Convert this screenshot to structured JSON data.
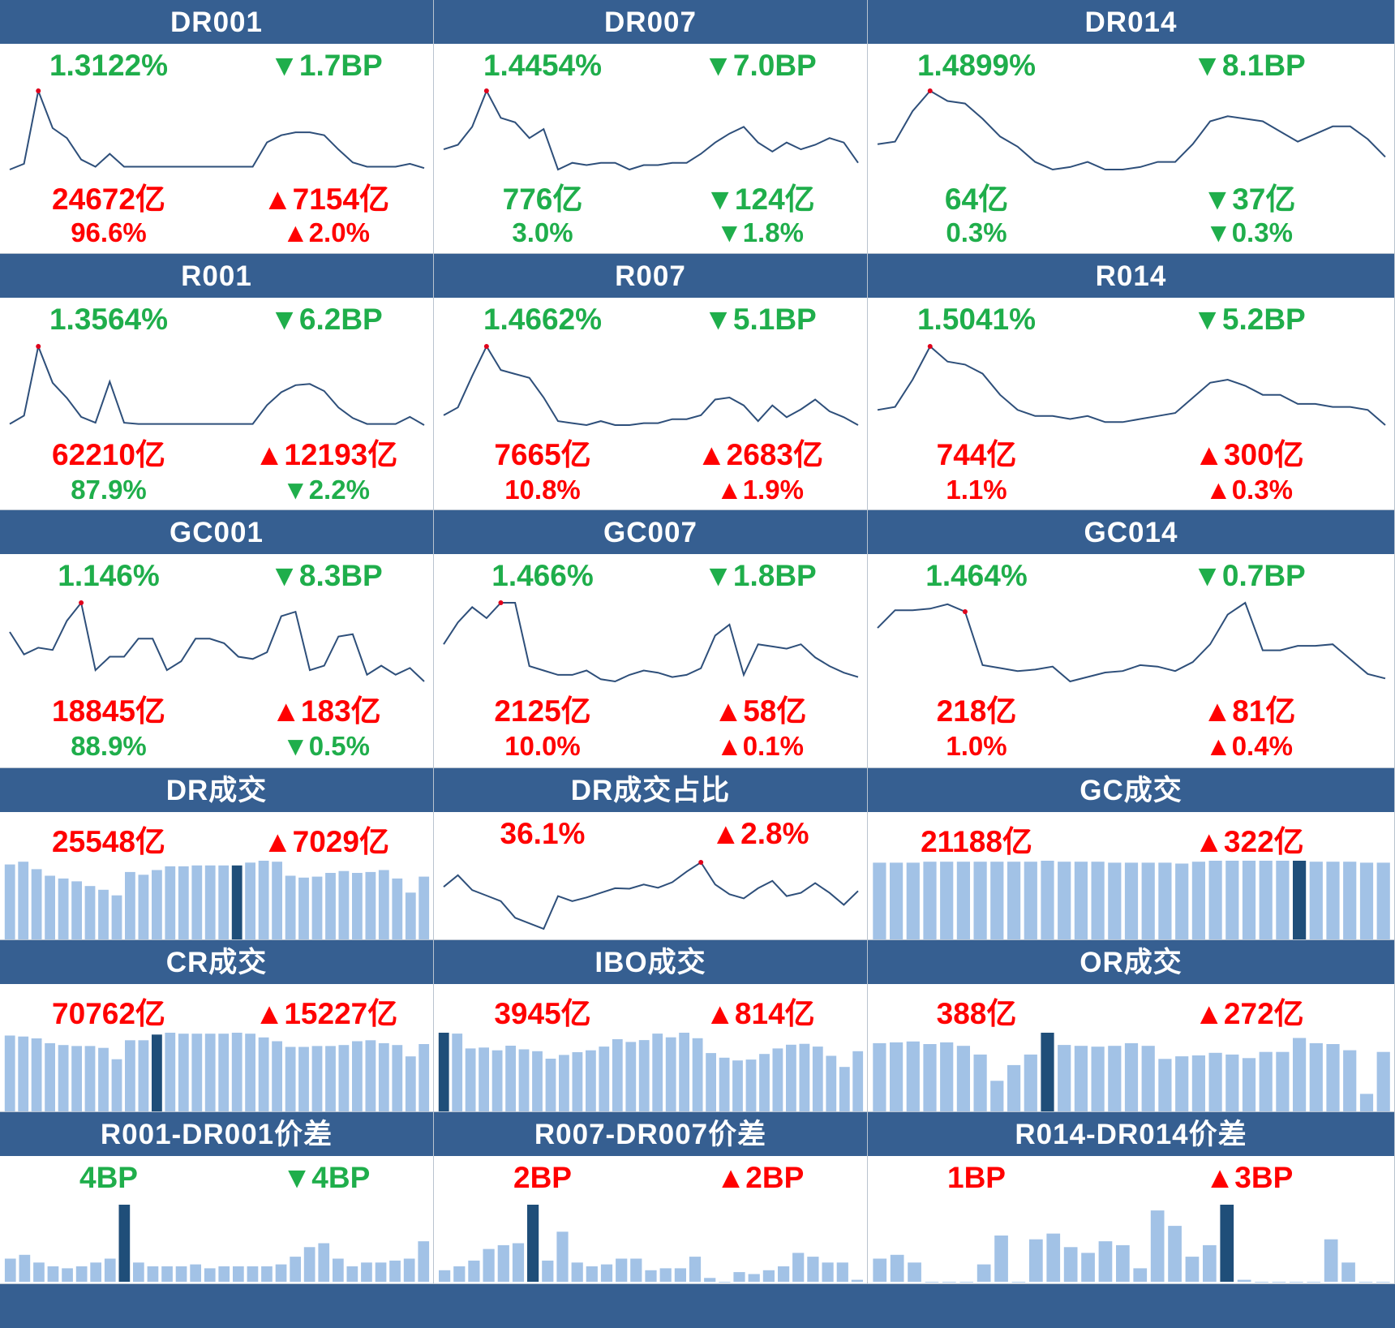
{
  "theme": {
    "header_bg": "#365f91",
    "up_color": "#ff0000",
    "down_color": "#1fae4b",
    "line_color": "#2e4f7a",
    "bar_color": "#a2c2e6",
    "bar_highlight": "#1f4e79",
    "marker_color": "#e0001b"
  },
  "rate_panels": [
    {
      "name": "DR001",
      "rate": "1.3122%",
      "rate_dir": "down",
      "rate_chg": "▼1.7BP",
      "rate_chg_dir": "down",
      "vol": "24672亿",
      "vol_dir": "up",
      "vol_chg": "▲7154亿",
      "vol_chg_dir": "up",
      "share": "96.6%",
      "share_dir": "up",
      "share_chg": "▲2.0%",
      "share_chg_dir": "up",
      "chart_data": {
        "type": "line",
        "title": "DR001",
        "values": [
          1.07,
          1.11,
          1.62,
          1.36,
          1.29,
          1.14,
          1.09,
          1.18,
          1.09,
          1.09,
          1.09,
          1.09,
          1.09,
          1.09,
          1.09,
          1.09,
          1.09,
          1.09,
          1.26,
          1.31,
          1.33,
          1.33,
          1.31,
          1.21,
          1.12,
          1.09,
          1.09,
          1.09,
          1.11,
          1.08
        ],
        "marker_index": 2
      }
    },
    {
      "name": "DR007",
      "rate": "1.4454%",
      "rate_dir": "down",
      "rate_chg": "▼7.0BP",
      "rate_chg_dir": "down",
      "vol": "776亿",
      "vol_dir": "down",
      "vol_chg": "▼124亿",
      "vol_chg_dir": "down",
      "share": "3.0%",
      "share_dir": "down",
      "share_chg": "▼1.8%",
      "share_chg_dir": "down",
      "chart_data": {
        "type": "line",
        "title": "DR007",
        "values": [
          1.5,
          1.52,
          1.6,
          1.76,
          1.64,
          1.62,
          1.55,
          1.59,
          1.41,
          1.44,
          1.43,
          1.44,
          1.44,
          1.41,
          1.43,
          1.43,
          1.44,
          1.44,
          1.48,
          1.53,
          1.57,
          1.6,
          1.53,
          1.49,
          1.53,
          1.5,
          1.52,
          1.55,
          1.53,
          1.44
        ],
        "marker_index": 3
      }
    },
    {
      "name": "DR014",
      "rate": "1.4899%",
      "rate_dir": "down",
      "rate_chg": "▼8.1BP",
      "rate_chg_dir": "down",
      "vol": "64亿",
      "vol_dir": "down",
      "vol_chg": "▼37亿",
      "vol_chg_dir": "down",
      "share": "0.3%",
      "share_dir": "down",
      "share_chg": "▼0.3%",
      "share_chg_dir": "down",
      "chart_data": {
        "type": "line",
        "title": "DR014",
        "values": [
          1.59,
          1.6,
          1.72,
          1.8,
          1.76,
          1.75,
          1.69,
          1.62,
          1.58,
          1.52,
          1.49,
          1.5,
          1.52,
          1.49,
          1.49,
          1.5,
          1.52,
          1.52,
          1.59,
          1.68,
          1.7,
          1.69,
          1.68,
          1.64,
          1.6,
          1.63,
          1.66,
          1.66,
          1.61,
          1.54
        ],
        "marker_index": 3
      }
    },
    {
      "name": "R001",
      "rate": "1.3564%",
      "rate_dir": "down",
      "rate_chg": "▼6.2BP",
      "rate_chg_dir": "down",
      "vol": "62210亿",
      "vol_dir": "up",
      "vol_chg": "▲12193亿",
      "vol_chg_dir": "up",
      "share": "87.9%",
      "share_dir": "down",
      "share_chg": "▼2.2%",
      "share_chg_dir": "down",
      "chart_data": {
        "type": "line",
        "title": "R001",
        "values": [
          1.09,
          1.16,
          1.75,
          1.44,
          1.31,
          1.15,
          1.1,
          1.45,
          1.1,
          1.09,
          1.09,
          1.09,
          1.09,
          1.09,
          1.09,
          1.09,
          1.09,
          1.09,
          1.25,
          1.36,
          1.42,
          1.43,
          1.37,
          1.23,
          1.14,
          1.09,
          1.09,
          1.09,
          1.15,
          1.08
        ],
        "marker_index": 2
      }
    },
    {
      "name": "R007",
      "rate": "1.4662%",
      "rate_dir": "down",
      "rate_chg": "▼5.1BP",
      "rate_chg_dir": "down",
      "vol": "7665亿",
      "vol_dir": "up",
      "vol_chg": "▲2683亿",
      "vol_chg_dir": "up",
      "share": "10.8%",
      "share_dir": "up",
      "share_chg": "▲1.9%",
      "share_chg_dir": "up",
      "chart_data": {
        "type": "line",
        "title": "R007",
        "values": [
          1.52,
          1.56,
          1.72,
          1.87,
          1.75,
          1.73,
          1.71,
          1.61,
          1.49,
          1.48,
          1.47,
          1.49,
          1.47,
          1.47,
          1.48,
          1.48,
          1.5,
          1.5,
          1.52,
          1.6,
          1.61,
          1.57,
          1.49,
          1.57,
          1.51,
          1.55,
          1.6,
          1.54,
          1.51,
          1.47
        ],
        "marker_index": 3
      }
    },
    {
      "name": "R014",
      "rate": "1.5041%",
      "rate_dir": "down",
      "rate_chg": "▼5.2BP",
      "rate_chg_dir": "down",
      "vol": "744亿",
      "vol_dir": "up",
      "vol_chg": "▲300亿",
      "vol_chg_dir": "up",
      "share": "1.1%",
      "share_dir": "up",
      "share_chg": "▲0.3%",
      "share_chg_dir": "up",
      "chart_data": {
        "type": "line",
        "title": "R014",
        "values": [
          1.64,
          1.65,
          1.74,
          1.85,
          1.8,
          1.79,
          1.76,
          1.69,
          1.64,
          1.62,
          1.62,
          1.61,
          1.62,
          1.6,
          1.6,
          1.61,
          1.62,
          1.63,
          1.68,
          1.73,
          1.74,
          1.72,
          1.69,
          1.69,
          1.66,
          1.66,
          1.65,
          1.65,
          1.64,
          1.59
        ],
        "marker_index": 3
      }
    },
    {
      "name": "GC001",
      "rate": "1.146%",
      "rate_dir": "down",
      "rate_chg": "▼8.3BP",
      "rate_chg_dir": "down",
      "vol": "18845亿",
      "vol_dir": "up",
      "vol_chg": "▲183亿",
      "vol_chg_dir": "up",
      "share": "88.9%",
      "share_dir": "down",
      "share_chg": "▼0.5%",
      "share_chg_dir": "down",
      "chart_data": {
        "type": "line",
        "title": "GC001",
        "values": [
          1.27,
          1.17,
          1.2,
          1.19,
          1.32,
          1.4,
          1.1,
          1.16,
          1.16,
          1.24,
          1.24,
          1.1,
          1.14,
          1.24,
          1.24,
          1.22,
          1.16,
          1.15,
          1.18,
          1.34,
          1.36,
          1.1,
          1.12,
          1.25,
          1.26,
          1.08,
          1.12,
          1.08,
          1.11,
          1.05
        ],
        "marker_index": 5
      }
    },
    {
      "name": "GC007",
      "rate": "1.466%",
      "rate_dir": "down",
      "rate_chg": "▼1.8BP",
      "rate_chg_dir": "down",
      "vol": "2125亿",
      "vol_dir": "up",
      "vol_chg": "▲58亿",
      "vol_chg_dir": "up",
      "share": "10.0%",
      "share_dir": "up",
      "share_chg": "▲0.1%",
      "share_chg_dir": "up",
      "chart_data": {
        "type": "line",
        "title": "GC007",
        "values": [
          1.69,
          1.79,
          1.86,
          1.81,
          1.88,
          1.88,
          1.59,
          1.57,
          1.55,
          1.55,
          1.57,
          1.53,
          1.52,
          1.55,
          1.57,
          1.56,
          1.54,
          1.55,
          1.58,
          1.73,
          1.78,
          1.55,
          1.69,
          1.68,
          1.67,
          1.69,
          1.63,
          1.59,
          1.56,
          1.54
        ],
        "marker_index": 4
      }
    },
    {
      "name": "GC014",
      "rate": "1.464%",
      "rate_dir": "down",
      "rate_chg": "▼0.7BP",
      "rate_chg_dir": "down",
      "vol": "218亿",
      "vol_dir": "up",
      "vol_chg": "▲81亿",
      "vol_chg_dir": "up",
      "share": "1.0%",
      "share_dir": "up",
      "share_chg": "▲0.4%",
      "share_chg_dir": "up",
      "chart_data": {
        "type": "line",
        "title": "GC014",
        "values": [
          1.72,
          1.84,
          1.84,
          1.85,
          1.88,
          1.83,
          1.47,
          1.45,
          1.43,
          1.44,
          1.46,
          1.36,
          1.39,
          1.42,
          1.43,
          1.47,
          1.46,
          1.43,
          1.49,
          1.61,
          1.81,
          1.89,
          1.57,
          1.57,
          1.6,
          1.6,
          1.61,
          1.51,
          1.41,
          1.38
        ],
        "marker_index": 5
      }
    }
  ],
  "volume_panels": [
    {
      "name": "DR成交",
      "v1": "25548亿",
      "v1_dir": "up",
      "v2": "▲7029亿",
      "v2_dir": "up",
      "chart_data": {
        "type": "bar",
        "title": "DR成交",
        "values": [
          80,
          83,
          75,
          68,
          65,
          62,
          57,
          53,
          47,
          72,
          69,
          74,
          78,
          78,
          79,
          79,
          79,
          79,
          82,
          84,
          83,
          68,
          66,
          67,
          71,
          73,
          71,
          72,
          74,
          65,
          50,
          67
        ],
        "highlight_index": 17
      }
    },
    {
      "name": "DR成交占比",
      "v1": "36.1%",
      "v1_dir": "up",
      "v2": "▲2.8%",
      "v2_dir": "up",
      "chart_data": {
        "type": "line",
        "title": "DR成交占比",
        "values": [
          30.8,
          33.3,
          30.1,
          28.9,
          27.7,
          24.1,
          22.9,
          21.7,
          28.8,
          27.7,
          28.5,
          29.5,
          30.5,
          30.4,
          31.3,
          30.6,
          31.8,
          34.1,
          36.1,
          31.3,
          29.2,
          28.3,
          30.5,
          32.1,
          28.8,
          29.5,
          31.6,
          29.5,
          26.9,
          29.9
        ],
        "marker_index": 18
      }
    },
    {
      "name": "GC成交",
      "v1": "21188亿",
      "v1_dir": "up",
      "v2": "▲322亿",
      "v2_dir": "up",
      "chart_data": {
        "type": "bar",
        "title": "GC成交",
        "values": [
          80,
          80,
          80,
          81,
          81,
          81,
          81,
          81,
          81,
          81,
          82,
          81,
          81,
          81,
          80,
          80,
          80,
          80,
          79,
          81,
          82,
          82,
          82,
          82,
          82,
          82,
          81,
          81,
          81,
          80,
          80
        ],
        "highlight_index": 25
      }
    },
    {
      "name": "CR成交",
      "v1": "70762亿",
      "v1_dir": "up",
      "v2": "▲15227亿",
      "v2_dir": "up",
      "chart_data": {
        "type": "bar",
        "title": "CR成交",
        "values": [
          80,
          79,
          77,
          72,
          70,
          69,
          69,
          67,
          55,
          75,
          75,
          81,
          83,
          82,
          82,
          82,
          82,
          83,
          82,
          78,
          74,
          68,
          68,
          69,
          69,
          70,
          74,
          75,
          72,
          70,
          58,
          71
        ],
        "highlight_index": 11
      }
    },
    {
      "name": "IBO成交",
      "v1": "3945亿",
      "v1_dir": "up",
      "v2": "▲814亿",
      "v2_dir": "up",
      "chart_data": {
        "type": "bar",
        "title": "IBO成交",
        "values": [
          85,
          84,
          68,
          69,
          66,
          71,
          67,
          65,
          57,
          61,
          64,
          66,
          70,
          78,
          75,
          77,
          84,
          80,
          85,
          79,
          63,
          58,
          55,
          56,
          62,
          68,
          72,
          73,
          70,
          60,
          48,
          65
        ],
        "highlight_index": 0
      }
    },
    {
      "name": "OR成交",
      "v1": "388亿",
      "v1_dir": "up",
      "v2": "▲272亿",
      "v2_dir": "up",
      "chart_data": {
        "type": "bar",
        "title": "OR成交",
        "values": [
          78,
          79,
          80,
          77,
          79,
          75,
          65,
          35,
          53,
          65,
          90,
          76,
          75,
          74,
          75,
          78,
          75,
          60,
          63,
          64,
          67,
          65,
          61,
          68,
          68,
          84,
          78,
          77,
          70,
          20,
          68
        ],
        "highlight_index": 10
      }
    }
  ],
  "spread_panels": [
    {
      "name": "R001-DR001价差",
      "v1": "4BP",
      "v1_dir": "down",
      "v2": "▼4BP",
      "v2_dir": "down",
      "chart_data": {
        "type": "bar",
        "title": "R001-DR001价差",
        "values": [
          1.2,
          1.4,
          1.0,
          0.8,
          0.7,
          0.8,
          1.0,
          1.2,
          4.0,
          1.0,
          0.8,
          0.8,
          0.8,
          0.9,
          0.7,
          0.8,
          0.8,
          0.8,
          0.8,
          0.9,
          1.3,
          1.8,
          2.0,
          1.2,
          0.8,
          1.0,
          1.0,
          1.1,
          1.2,
          2.1
        ],
        "highlight_index": 8
      }
    },
    {
      "name": "R007-DR007价差",
      "v1": "2BP",
      "v1_dir": "up",
      "v2": "▲2BP",
      "v2_dir": "up",
      "chart_data": {
        "type": "bar",
        "title": "R007-DR007价差",
        "values": [
          0.6,
          0.8,
          1.1,
          1.7,
          1.9,
          2.0,
          4.0,
          1.1,
          2.6,
          1.0,
          0.8,
          0.9,
          1.2,
          1.2,
          0.6,
          0.7,
          0.7,
          1.3,
          0.2,
          0,
          0.5,
          0.4,
          0.6,
          0.8,
          1.5,
          1.3,
          1.0,
          1.0,
          0.1
        ],
        "highlight_index": 6
      }
    },
    {
      "name": "R014-DR014价差",
      "v1": "1BP",
      "v1_dir": "up",
      "v2": "▲3BP",
      "v2_dir": "up",
      "chart_data": {
        "type": "bar",
        "title": "R014-DR014价差",
        "values": [
          1.2,
          1.4,
          1.0,
          0,
          0,
          0,
          0.9,
          2.4,
          0,
          2.2,
          2.5,
          1.8,
          1.5,
          2.1,
          1.9,
          0.7,
          3.7,
          2.9,
          1.3,
          1.9,
          4.0,
          0.1,
          0,
          0,
          0,
          0,
          2.2,
          1.0,
          0,
          0
        ],
        "highlight_index": 20
      }
    }
  ]
}
